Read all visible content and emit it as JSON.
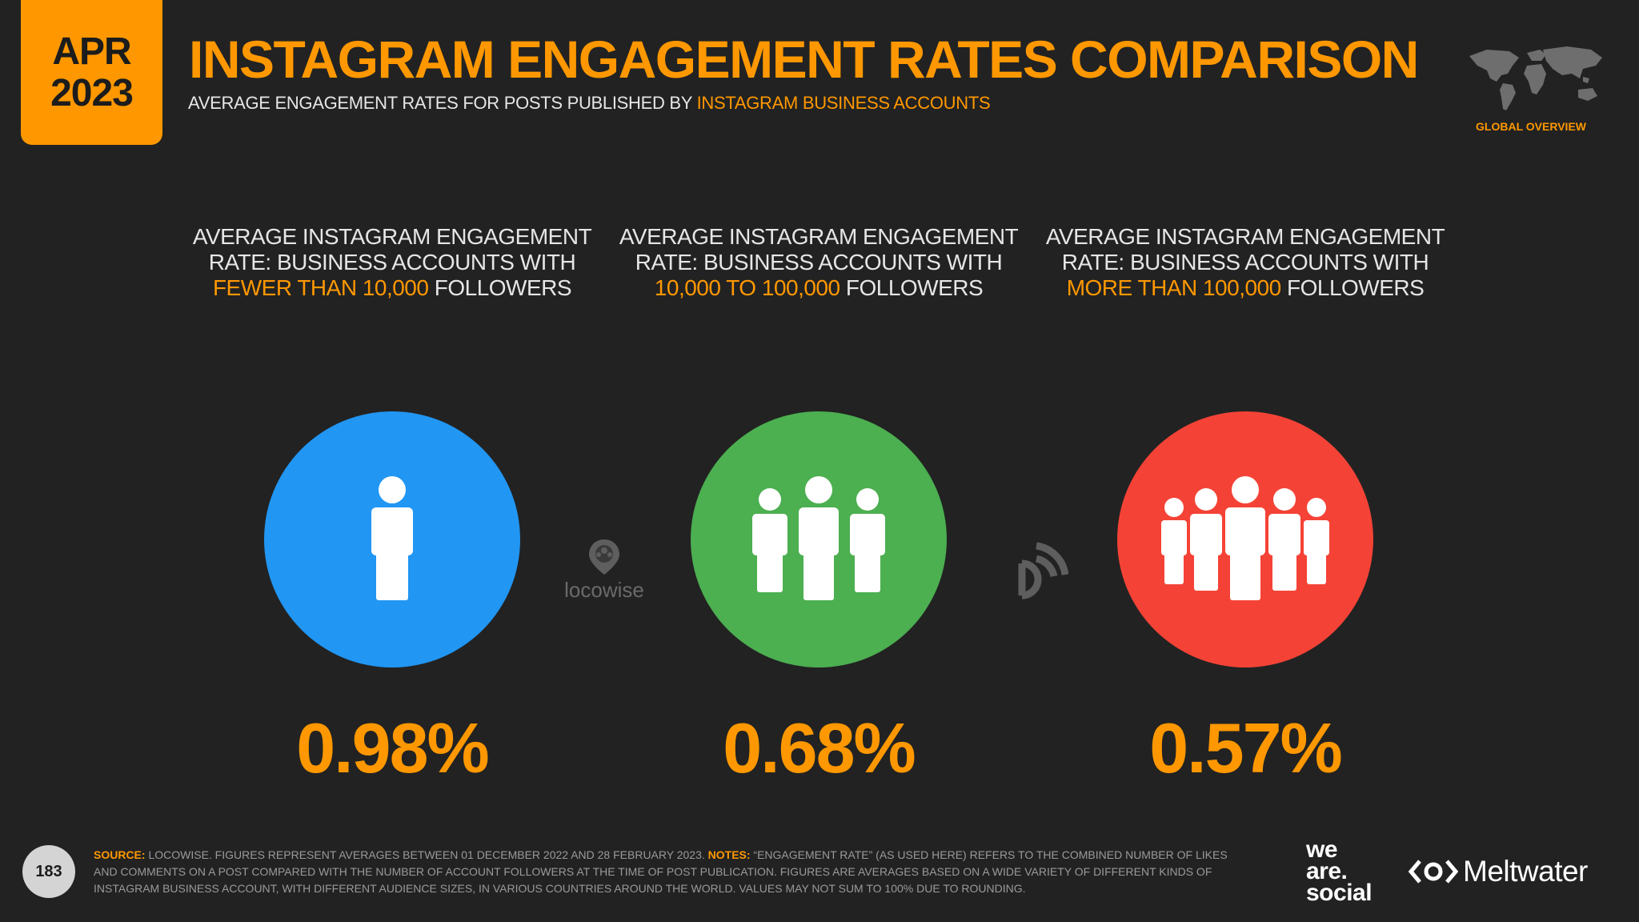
{
  "header": {
    "badge_month": "APR",
    "badge_year": "2023",
    "title": "INSTAGRAM ENGAGEMENT RATES COMPARISON",
    "subtitle_prefix": "AVERAGE ENGAGEMENT RATES FOR POSTS PUBLISHED BY ",
    "subtitle_highlight": "INSTAGRAM BUSINESS ACCOUNTS",
    "region_label": "GLOBAL OVERVIEW"
  },
  "panels": [
    {
      "heading_line1": "AVERAGE INSTAGRAM ENGAGEMENT",
      "heading_line2": "RATE: BUSINESS ACCOUNTS WITH",
      "heading_highlight": "FEWER THAN 10,000",
      "heading_suffix": " FOLLOWERS",
      "value": "0.98%",
      "color": "#2196f3",
      "icon": "single-person-icon"
    },
    {
      "heading_line1": "AVERAGE INSTAGRAM ENGAGEMENT",
      "heading_line2": "RATE: BUSINESS ACCOUNTS WITH",
      "heading_highlight": "10,000 TO 100,000",
      "heading_suffix": " FOLLOWERS",
      "value": "0.68%",
      "color": "#4caf50",
      "icon": "three-people-icon"
    },
    {
      "heading_line1": "AVERAGE INSTAGRAM ENGAGEMENT",
      "heading_line2": "RATE: BUSINESS ACCOUNTS WITH",
      "heading_highlight": "MORE THAN 100,000",
      "heading_suffix": " FOLLOWERS",
      "value": "0.57%",
      "color": "#f44336",
      "icon": "five-people-icon"
    }
  ],
  "watermarks": {
    "locowise": "locowise"
  },
  "footer": {
    "page_number": "183",
    "source_label": "SOURCE:",
    "source_text": " LOCOWISE. FIGURES REPRESENT AVERAGES BETWEEN 01 DECEMBER 2022 AND 28 FEBRUARY 2023. ",
    "notes_label": "NOTES:",
    "notes_text": " “ENGAGEMENT RATE” (AS USED HERE) REFERS TO THE COMBINED NUMBER OF LIKES AND COMMENTS ON A POST COMPARED WITH THE NUMBER OF ACCOUNT FOLLOWERS AT THE TIME OF POST PUBLICATION. FIGURES ARE AVERAGES BASED ON A WIDE VARIETY OF DIFFERENT KINDS OF INSTAGRAM BUSINESS ACCOUNT, WITH DIFFERENT AUDIENCE SIZES, IN VARIOUS COUNTRIES AROUND THE WORLD. VALUES MAY NOT SUM TO 100% DUE TO ROUNDING.",
    "brand_was_1": "we",
    "brand_was_2": "are.",
    "brand_was_3": "social",
    "brand_meltwater": "Meltwater"
  },
  "colors": {
    "background": "#222222",
    "accent": "#ff9800",
    "blue": "#2196f3",
    "green": "#4caf50",
    "red": "#f44336"
  }
}
